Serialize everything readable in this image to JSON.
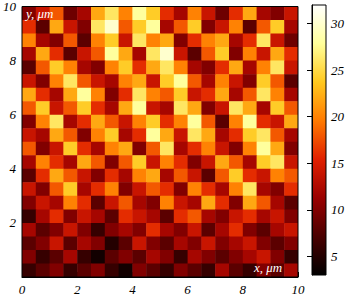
{
  "chart_data": {
    "type": "heatmap",
    "xlabel": "x, μm",
    "ylabel": "y, μm",
    "xlim": [
      0,
      10
    ],
    "ylim": [
      0,
      10
    ],
    "xticks": [
      0,
      2,
      4,
      6,
      8,
      10
    ],
    "yticks": [
      2,
      4,
      6,
      8,
      10
    ],
    "colorbar": {
      "range": [
        3,
        32
      ],
      "ticks": [
        5,
        10,
        15,
        20,
        25,
        30
      ]
    },
    "cells": [
      [
        10,
        14,
        18,
        9,
        12,
        22,
        26,
        20,
        28,
        24,
        16,
        12,
        20,
        14,
        9,
        16,
        22,
        12,
        10,
        14
      ],
      [
        16,
        8,
        22,
        14,
        10,
        26,
        30,
        18,
        24,
        28,
        12,
        18,
        24,
        10,
        14,
        20,
        8,
        18,
        24,
        12
      ],
      [
        20,
        12,
        10,
        18,
        8,
        20,
        24,
        14,
        26,
        20,
        22,
        10,
        16,
        20,
        22,
        12,
        16,
        26,
        14,
        9
      ],
      [
        12,
        22,
        16,
        8,
        14,
        18,
        28,
        22,
        12,
        26,
        30,
        14,
        8,
        18,
        24,
        10,
        20,
        14,
        22,
        16
      ],
      [
        8,
        18,
        24,
        20,
        12,
        10,
        20,
        24,
        16,
        22,
        26,
        20,
        12,
        10,
        16,
        22,
        12,
        20,
        26,
        14
      ],
      [
        14,
        10,
        20,
        26,
        18,
        14,
        12,
        20,
        22,
        14,
        24,
        28,
        18,
        12,
        20,
        14,
        10,
        24,
        18,
        8
      ],
      [
        22,
        16,
        12,
        22,
        28,
        20,
        10,
        16,
        26,
        20,
        18,
        24,
        14,
        16,
        22,
        12,
        18,
        26,
        20,
        12
      ],
      [
        18,
        24,
        14,
        18,
        24,
        16,
        12,
        22,
        28,
        14,
        12,
        26,
        22,
        10,
        14,
        26,
        22,
        12,
        24,
        18
      ],
      [
        10,
        20,
        26,
        12,
        16,
        22,
        18,
        14,
        20,
        24,
        16,
        20,
        28,
        18,
        8,
        20,
        28,
        16,
        14,
        22
      ],
      [
        14,
        12,
        22,
        18,
        10,
        20,
        24,
        12,
        16,
        28,
        22,
        14,
        26,
        22,
        12,
        16,
        24,
        26,
        18,
        12
      ],
      [
        18,
        10,
        14,
        24,
        16,
        12,
        20,
        22,
        10,
        18,
        26,
        12,
        16,
        20,
        14,
        10,
        20,
        28,
        22,
        10
      ],
      [
        12,
        20,
        16,
        12,
        22,
        18,
        10,
        18,
        24,
        14,
        20,
        16,
        10,
        14,
        22,
        18,
        12,
        24,
        26,
        14
      ],
      [
        8,
        16,
        22,
        18,
        14,
        10,
        16,
        12,
        20,
        22,
        12,
        18,
        14,
        8,
        18,
        24,
        16,
        14,
        20,
        18
      ],
      [
        14,
        10,
        18,
        24,
        12,
        16,
        20,
        10,
        14,
        18,
        16,
        10,
        20,
        16,
        12,
        20,
        26,
        12,
        10,
        16
      ],
      [
        10,
        14,
        12,
        20,
        16,
        8,
        14,
        18,
        12,
        10,
        20,
        14,
        12,
        22,
        16,
        10,
        22,
        18,
        12,
        8
      ],
      [
        6,
        12,
        16,
        10,
        14,
        12,
        8,
        16,
        14,
        12,
        8,
        16,
        18,
        12,
        10,
        14,
        16,
        12,
        14,
        10
      ],
      [
        12,
        8,
        10,
        14,
        10,
        6,
        10,
        12,
        10,
        16,
        12,
        10,
        14,
        8,
        12,
        16,
        10,
        8,
        12,
        14
      ],
      [
        8,
        10,
        14,
        8,
        12,
        10,
        5,
        8,
        14,
        10,
        8,
        12,
        10,
        14,
        10,
        12,
        14,
        10,
        8,
        10
      ],
      [
        10,
        6,
        8,
        12,
        6,
        4,
        8,
        10,
        8,
        12,
        10,
        6,
        12,
        10,
        8,
        10,
        12,
        14,
        10,
        6
      ],
      [
        6,
        8,
        10,
        6,
        8,
        10,
        6,
        4,
        10,
        8,
        6,
        10,
        8,
        6,
        12,
        8,
        6,
        10,
        8,
        12
      ]
    ]
  }
}
